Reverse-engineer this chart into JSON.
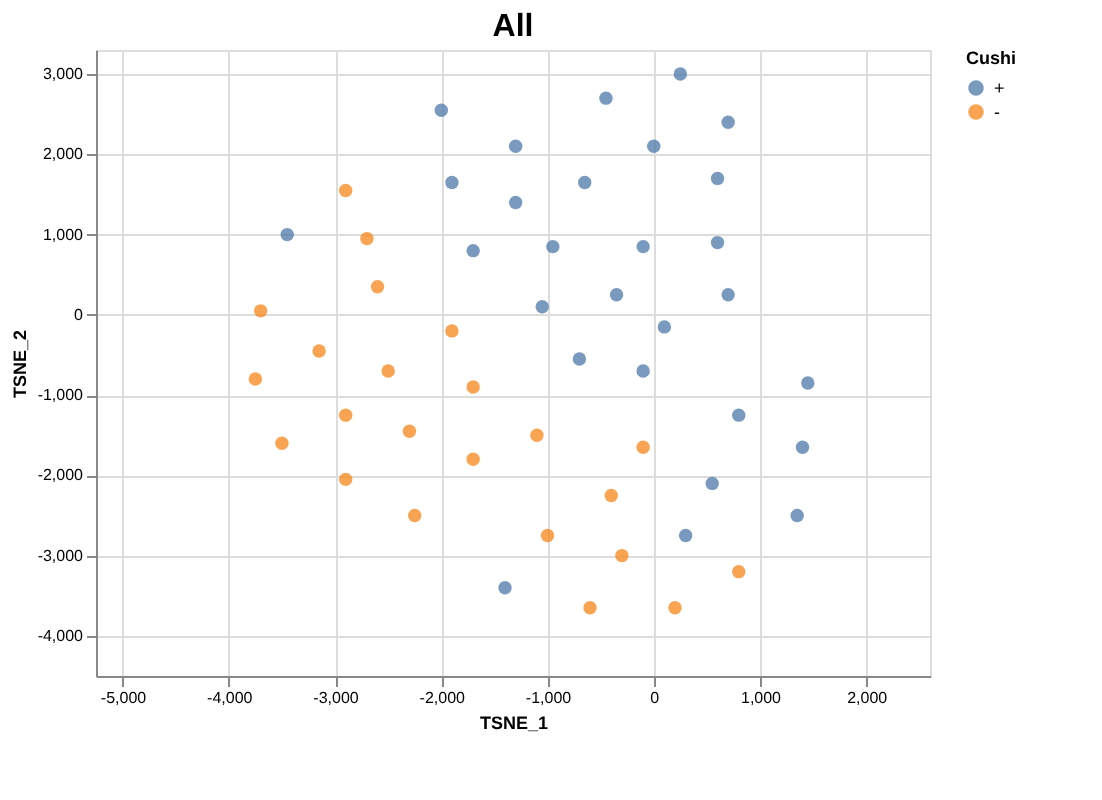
{
  "chart_data": {
    "type": "scatter",
    "title": "All",
    "xlabel": "TSNE_1",
    "ylabel": "TSNE_2",
    "legend_title": "Cushi",
    "legend": "top right",
    "grid": true,
    "marker": "circle",
    "xlim": [
      -5250,
      2600
    ],
    "ylim": [
      -4500,
      3300
    ],
    "xticks": [
      {
        "value": -5000,
        "label": "-5,000"
      },
      {
        "value": -4000,
        "label": "-4,000"
      },
      {
        "value": -3000,
        "label": "-3,000"
      },
      {
        "value": -2000,
        "label": "-2,000"
      },
      {
        "value": -1000,
        "label": "-1,000"
      },
      0,
      {
        "value": 1000,
        "label": "1,000"
      },
      {
        "value": 2000,
        "label": "2,000"
      }
    ],
    "yticks": [
      {
        "value": -4000,
        "label": "-4,000"
      },
      {
        "value": -3000,
        "label": "-3,000"
      },
      {
        "value": -2000,
        "label": "-2,000"
      },
      {
        "value": -1000,
        "label": "-1,000"
      },
      0,
      {
        "value": 1000,
        "label": "1,000"
      },
      {
        "value": 2000,
        "label": "2,000"
      },
      {
        "value": 3000,
        "label": "3,000"
      }
    ],
    "series": [
      {
        "name": "+",
        "color": "#4c78a8",
        "x": [
          -2000,
          -1900,
          -3450,
          -1700,
          250,
          -450,
          700,
          -1300,
          0,
          600,
          -650,
          -1300,
          -950,
          -100,
          600,
          -350,
          700,
          -1050,
          100,
          -700,
          -100,
          1450,
          -1400,
          800,
          1400,
          550,
          1350,
          300
        ],
        "values": [
          2550,
          1650,
          1000,
          800,
          3000,
          2700,
          2400,
          2100,
          2100,
          1700,
          1650,
          1400,
          850,
          850,
          900,
          250,
          250,
          100,
          -150,
          -550,
          -700,
          -850,
          -3400,
          -1250,
          -1650,
          -2100,
          -2500,
          -2750
        ]
      },
      {
        "name": "-",
        "color": "#f58518",
        "x": [
          -2900,
          -2700,
          -2600,
          -3700,
          -1900,
          -3150,
          -2500,
          -3750,
          -1700,
          -2900,
          -3500,
          -2300,
          -1700,
          -2900,
          -2250,
          -1100,
          -100,
          -400,
          -1000,
          -300,
          800,
          -600,
          200
        ],
        "values": [
          1550,
          950,
          350,
          50,
          -200,
          -450,
          -700,
          -800,
          -900,
          -1250,
          -1600,
          -1450,
          -1800,
          -2050,
          -2500,
          -1500,
          -1650,
          -2250,
          -2750,
          -3000,
          -3200,
          -3650,
          -3650
        ]
      }
    ]
  }
}
